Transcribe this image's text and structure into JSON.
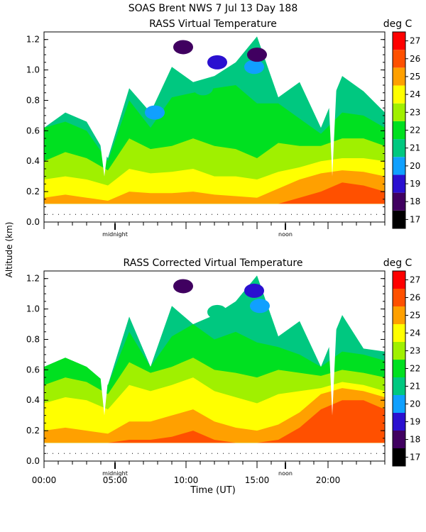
{
  "header": {
    "title": "SOAS Brent NWS    7 Jul 13 Day 188"
  },
  "chart_data": [
    {
      "type": "heatmap",
      "title": "RASS Virtual Temperature",
      "legend_unit": "deg C",
      "xlabel": "Time (UT)",
      "ylabel": "Altitude (km)",
      "xlim": [
        0,
        24
      ],
      "ylim": [
        0,
        1.25
      ],
      "y_ticks": [
        0.0,
        0.2,
        0.4,
        0.6,
        0.8,
        1.0,
        1.2
      ],
      "y_tick_labels": [
        "0.0",
        "0.2",
        "0.4",
        "0.6",
        "0.8",
        "1.0",
        "1.2"
      ],
      "x_ticks": [
        0,
        5,
        10,
        15,
        20
      ],
      "x_tick_labels": [
        "00:00",
        "05:00",
        "10:00",
        "15:00",
        "20:00"
      ],
      "markers": [
        {
          "label": "midnight",
          "x": 5
        },
        {
          "label": "noon",
          "x": 17
        }
      ],
      "colorbar_levels": [
        17,
        18,
        19,
        20,
        21,
        22,
        23,
        24,
        25,
        26,
        27
      ],
      "colorbar_labels": [
        "17",
        "18",
        "19",
        "20",
        "21",
        "22",
        "23",
        "24",
        "25",
        "26",
        "27"
      ],
      "colorbar_colors": [
        "#000000",
        "#400060",
        "#2a10d0",
        "#10a0ff",
        "#00c880",
        "#00e020",
        "#a0f000",
        "#ffff00",
        "#ffa000",
        "#ff5000",
        "#ff0000"
      ],
      "profile_times": [
        0,
        1.5,
        3,
        4.5,
        6,
        7.5,
        9,
        10.5,
        12,
        13.5,
        15,
        16.5,
        18,
        19.5,
        21,
        22.5,
        24
      ],
      "profile_tops": [
        0.62,
        0.72,
        0.66,
        0.42,
        0.88,
        0.72,
        1.02,
        0.92,
        0.96,
        1.05,
        1.22,
        0.82,
        0.92,
        0.62,
        0.96,
        0.86,
        0.72
      ],
      "levels": [
        {
          "value": 22,
          "heights": [
            0.62,
            0.66,
            0.6,
            0.4,
            0.8,
            0.62,
            0.82,
            0.85,
            0.88,
            0.9,
            0.78,
            0.78,
            0.68,
            0.58,
            0.72,
            0.7,
            0.62
          ]
        },
        {
          "value": 23,
          "heights": [
            0.4,
            0.46,
            0.42,
            0.34,
            0.55,
            0.48,
            0.5,
            0.55,
            0.5,
            0.48,
            0.42,
            0.52,
            0.5,
            0.5,
            0.55,
            0.55,
            0.5
          ]
        },
        {
          "value": 24,
          "heights": [
            0.28,
            0.3,
            0.28,
            0.24,
            0.35,
            0.32,
            0.33,
            0.35,
            0.3,
            0.3,
            0.28,
            0.33,
            0.36,
            0.4,
            0.42,
            0.42,
            0.4
          ]
        },
        {
          "value": 25,
          "heights": [
            0.16,
            0.18,
            0.16,
            0.14,
            0.2,
            0.19,
            0.19,
            0.2,
            0.18,
            0.17,
            0.16,
            0.22,
            0.28,
            0.32,
            0.34,
            0.33,
            0.3
          ]
        },
        {
          "value": 26,
          "heights": [
            0.12,
            0.12,
            0.12,
            0.12,
            0.12,
            0.12,
            0.12,
            0.12,
            0.12,
            0.12,
            0.12,
            0.12,
            0.16,
            0.2,
            0.26,
            0.24,
            0.2
          ]
        }
      ],
      "cool_patches": [
        {
          "x": 9.8,
          "y": 1.15,
          "value": 18
        },
        {
          "x": 12.2,
          "y": 1.05,
          "value": 19
        },
        {
          "x": 14.8,
          "y": 1.02,
          "value": 20
        },
        {
          "x": 15.0,
          "y": 1.1,
          "value": 18
        },
        {
          "x": 7.8,
          "y": 0.72,
          "value": 20
        },
        {
          "x": 11.2,
          "y": 0.88,
          "value": 21
        }
      ],
      "gaps": [
        [
          3.9,
          4.6
        ],
        [
          20.0,
          20.6
        ]
      ]
    },
    {
      "type": "heatmap",
      "title": "RASS Corrected Virtual Temperature",
      "legend_unit": "deg C",
      "xlabel": "Time (UT)",
      "ylabel": "Altitude (km)",
      "xlim": [
        0,
        24
      ],
      "ylim": [
        0,
        1.25
      ],
      "y_ticks": [
        0.0,
        0.2,
        0.4,
        0.6,
        0.8,
        1.0,
        1.2
      ],
      "y_tick_labels": [
        "0.0",
        "0.2",
        "0.4",
        "0.6",
        "0.8",
        "1.0",
        "1.2"
      ],
      "x_ticks": [
        0,
        5,
        10,
        15,
        20
      ],
      "x_tick_labels": [
        "00:00",
        "05:00",
        "10:00",
        "15:00",
        "20:00"
      ],
      "markers": [
        {
          "label": "midnight",
          "x": 5
        },
        {
          "label": "noon",
          "x": 17
        }
      ],
      "colorbar_levels": [
        17,
        18,
        19,
        20,
        21,
        22,
        23,
        24,
        25,
        26,
        27
      ],
      "colorbar_labels": [
        "17",
        "18",
        "19",
        "20",
        "21",
        "22",
        "23",
        "24",
        "25",
        "26",
        "27"
      ],
      "colorbar_colors": [
        "#000000",
        "#400060",
        "#2a10d0",
        "#10a0ff",
        "#00c880",
        "#00e020",
        "#a0f000",
        "#ffff00",
        "#ffa000",
        "#ff5000",
        "#ff0000"
      ],
      "profile_times": [
        0,
        1.5,
        3,
        4.5,
        6,
        7.5,
        9,
        10.5,
        12,
        13.5,
        15,
        16.5,
        18,
        19.5,
        21,
        22.5,
        24
      ],
      "profile_tops": [
        0.62,
        0.68,
        0.62,
        0.5,
        0.95,
        0.62,
        1.02,
        0.9,
        0.96,
        1.05,
        1.22,
        0.82,
        0.92,
        0.62,
        0.96,
        0.74,
        0.72
      ],
      "levels": [
        {
          "value": 22,
          "heights": [
            0.66,
            0.7,
            0.66,
            0.55,
            0.85,
            0.72,
            0.82,
            0.9,
            0.8,
            0.85,
            0.78,
            0.75,
            0.7,
            0.66,
            0.72,
            0.7,
            0.66
          ]
        },
        {
          "value": 23,
          "heights": [
            0.5,
            0.55,
            0.52,
            0.44,
            0.65,
            0.58,
            0.62,
            0.68,
            0.6,
            0.58,
            0.55,
            0.6,
            0.58,
            0.56,
            0.6,
            0.58,
            0.55
          ]
        },
        {
          "value": 24,
          "heights": [
            0.38,
            0.42,
            0.4,
            0.34,
            0.5,
            0.46,
            0.5,
            0.55,
            0.46,
            0.42,
            0.38,
            0.44,
            0.46,
            0.48,
            0.52,
            0.5,
            0.46
          ]
        },
        {
          "value": 25,
          "heights": [
            0.2,
            0.22,
            0.2,
            0.18,
            0.26,
            0.26,
            0.3,
            0.34,
            0.26,
            0.22,
            0.2,
            0.24,
            0.32,
            0.44,
            0.48,
            0.46,
            0.42
          ]
        },
        {
          "value": 26,
          "heights": [
            0.12,
            0.12,
            0.12,
            0.12,
            0.14,
            0.14,
            0.16,
            0.2,
            0.14,
            0.12,
            0.12,
            0.14,
            0.22,
            0.34,
            0.4,
            0.4,
            0.34
          ]
        }
      ],
      "cool_patches": [
        {
          "x": 9.8,
          "y": 1.15,
          "value": 18
        },
        {
          "x": 14.8,
          "y": 1.12,
          "value": 19
        },
        {
          "x": 15.2,
          "y": 1.02,
          "value": 20
        },
        {
          "x": 12.2,
          "y": 0.98,
          "value": 21
        }
      ],
      "gaps": [
        [
          3.9,
          4.6
        ],
        [
          20.0,
          20.6
        ]
      ]
    }
  ]
}
